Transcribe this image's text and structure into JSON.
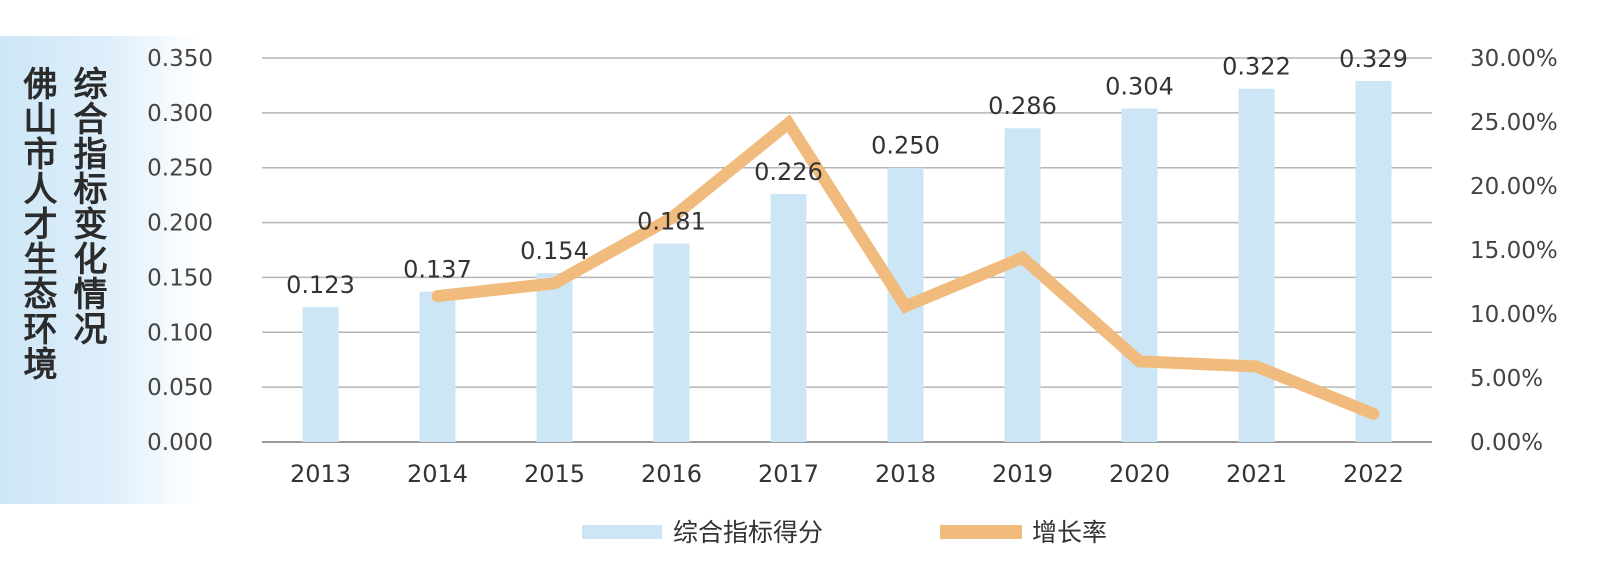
{
  "title": "佛山市人才生态环境",
  "subtitle": "综合指标变化情况",
  "chart_data": {
    "type": "bar",
    "categories": [
      "2013",
      "2014",
      "2015",
      "2016",
      "2017",
      "2018",
      "2019",
      "2020",
      "2021",
      "2022"
    ],
    "series": [
      {
        "name": "综合指标得分",
        "type": "bar",
        "axis": "left",
        "color": "#cde6f6",
        "values": [
          0.123,
          0.137,
          0.154,
          0.181,
          0.226,
          0.25,
          0.286,
          0.304,
          0.322,
          0.329
        ],
        "labels": [
          "0.123",
          "0.137",
          "0.154",
          "0.181",
          "0.226",
          "0.250",
          "0.286",
          "0.304",
          "0.322",
          "0.329"
        ]
      },
      {
        "name": "增长率",
        "type": "line",
        "axis": "right",
        "color": "#f0bb7c",
        "values": [
          null,
          11.4,
          12.4,
          17.5,
          24.9,
          10.6,
          14.4,
          6.3,
          5.9,
          2.2
        ]
      }
    ],
    "y_left": {
      "ylim": [
        0,
        0.35
      ],
      "ticks": [
        0.0,
        0.05,
        0.1,
        0.15,
        0.2,
        0.25,
        0.3,
        0.35
      ],
      "tick_labels": [
        "0.000",
        "0.050",
        "0.100",
        "0.150",
        "0.200",
        "0.250",
        "0.300",
        "0.350"
      ]
    },
    "y_right": {
      "ylim": [
        0,
        30
      ],
      "ticks": [
        0,
        5,
        10,
        15,
        20,
        25,
        30
      ],
      "tick_labels": [
        "0.00%",
        "5.00%",
        "10.00%",
        "15.00%",
        "20.00%",
        "25.00%",
        "30.00%"
      ]
    },
    "grid": true,
    "legend_position": "bottom"
  }
}
